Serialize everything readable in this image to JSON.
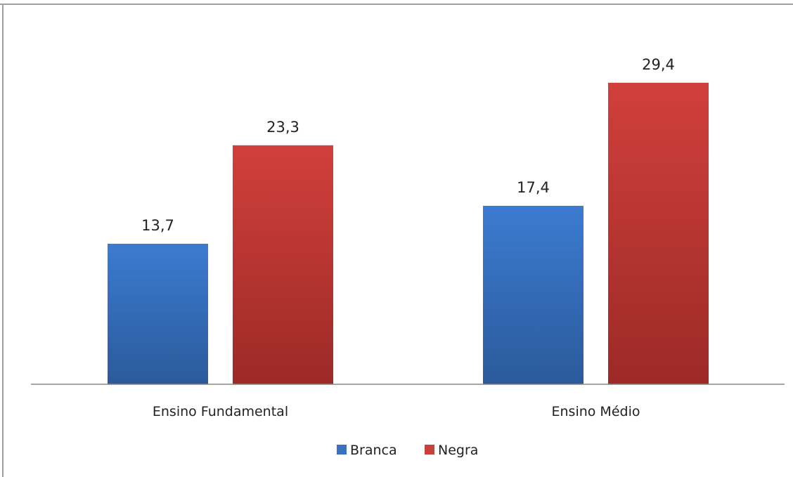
{
  "chart_data": {
    "type": "bar",
    "title": "",
    "categories": [
      "Ensino Fundamental",
      "Ensino Médio"
    ],
    "series": [
      {
        "name": "Branca",
        "values": [
          13.7,
          17.4
        ],
        "value_labels": [
          "13,7",
          "17,4"
        ],
        "color": "#3a72c2"
      },
      {
        "name": "Negra",
        "values": [
          23.3,
          29.4
        ],
        "value_labels": [
          "23,3",
          "29,4"
        ],
        "color": "#c8403c"
      }
    ],
    "ylim": [
      0,
      35
    ],
    "grid": false,
    "legend": "bottom",
    "xlabel": "",
    "ylabel": ""
  },
  "colors": {
    "branca_top": "#3c7bd1",
    "branca_bottom": "#2a5a9a",
    "negra_top": "#d13f3b",
    "negra_bottom": "#9c2a27",
    "axis": "#888888"
  }
}
